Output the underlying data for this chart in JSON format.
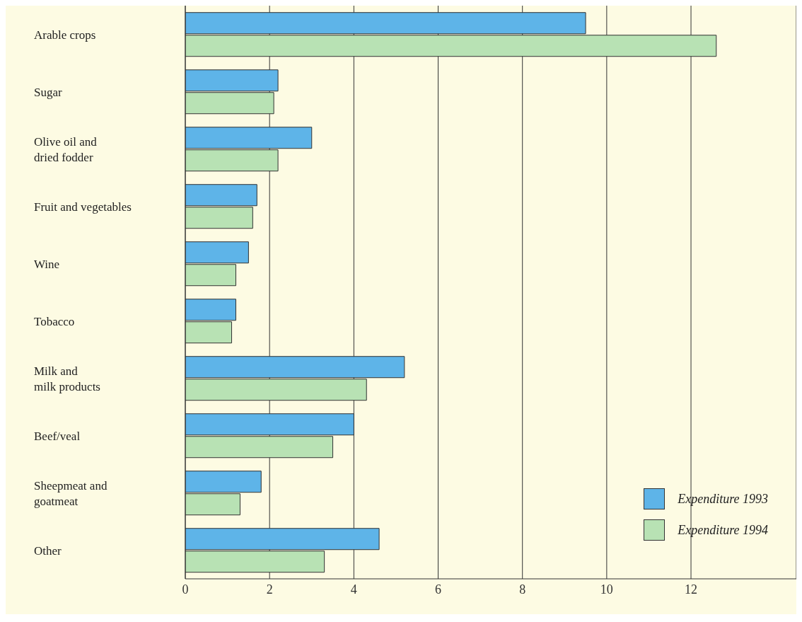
{
  "chart_data": {
    "type": "bar",
    "orientation": "horizontal",
    "categories": [
      "Arable crops",
      "Sugar",
      "Olive oil and\ndried fodder",
      "Fruit and vegetables",
      "Wine",
      "Tobacco",
      "Milk and\nmilk products",
      "Beef/veal",
      "Sheepmeat and\ngoatmeat",
      "Other"
    ],
    "series": [
      {
        "name": "Expenditure 1993",
        "color": "#5eb4e8",
        "values": [
          9.5,
          2.2,
          3.0,
          1.7,
          1.5,
          1.2,
          5.2,
          4.0,
          1.8,
          4.6
        ]
      },
      {
        "name": "Expenditure 1994",
        "color": "#b8e2b4",
        "values": [
          12.6,
          2.1,
          2.2,
          1.6,
          1.2,
          1.1,
          4.3,
          3.5,
          1.3,
          3.3
        ]
      }
    ],
    "xlim": [
      0,
      14.5
    ],
    "xticks": [
      0,
      2,
      4,
      6,
      8,
      10,
      12
    ],
    "grid": "x",
    "legend": "bottom right"
  }
}
